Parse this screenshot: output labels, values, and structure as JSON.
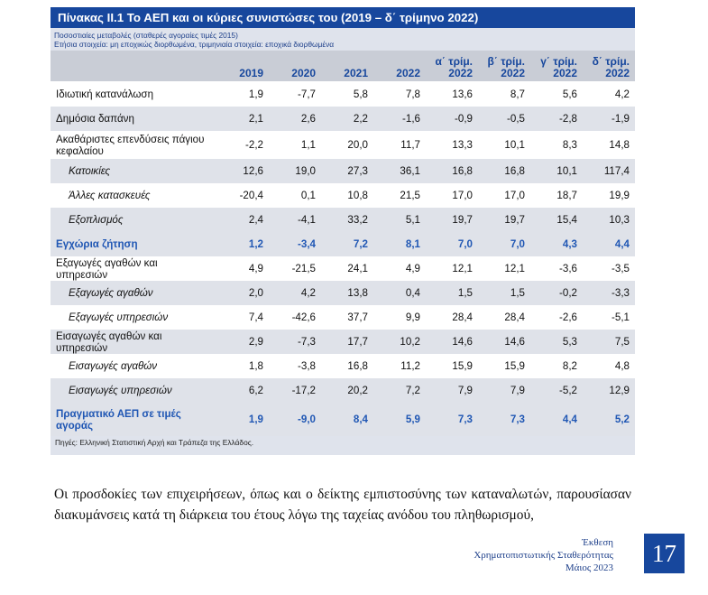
{
  "table": {
    "title": "Πίνακας ΙΙ.1 Το ΑΕΠ και οι κύριες συνιστώσες του (2019 – δ΄ τρίμηνο 2022)",
    "notes": [
      "Ποσοστιαίες μεταβολές (σταθερές αγοραίες τιμές 2015)",
      "Ετήσια στοιχεία: μη εποχικώς διορθωμένα, τριμηνιαία στοιχεία: εποχικά διορθωμένα"
    ],
    "columns": [
      "2019",
      "2020",
      "2021",
      "2022",
      "α΄ τρίμ. 2022",
      "β΄ τρίμ. 2022",
      "γ΄ τρίμ. 2022",
      "δ΄ τρίμ. 2022"
    ],
    "rows": [
      {
        "label": "Ιδιωτική κατανάλωση",
        "values": [
          "1,9",
          "-7,7",
          "5,8",
          "7,8",
          "13,6",
          "8,7",
          "5,6",
          "4,2"
        ]
      },
      {
        "label": "Δημόσια δαπάνη",
        "values": [
          "2,1",
          "2,6",
          "2,2",
          "-1,6",
          "-0,9",
          "-0,5",
          "-2,8",
          "-1,9"
        ]
      },
      {
        "label": "Ακαθάριστες επενδύσεις πάγιου κεφαλαίου",
        "values": [
          "-2,2",
          "1,1",
          "20,0",
          "11,7",
          "13,3",
          "10,1",
          "8,3",
          "14,8"
        ]
      },
      {
        "label": "Κατοικίες",
        "values": [
          "12,6",
          "19,0",
          "27,3",
          "36,1",
          "16,8",
          "16,8",
          "10,1",
          "117,4"
        ]
      },
      {
        "label": "Άλλες κατασκευές",
        "values": [
          "-20,4",
          "0,1",
          "10,8",
          "21,5",
          "17,0",
          "17,0",
          "18,7",
          "19,9"
        ]
      },
      {
        "label": "Εξοπλισμός",
        "values": [
          "2,4",
          "-4,1",
          "33,2",
          "5,1",
          "19,7",
          "19,7",
          "15,4",
          "10,3"
        ]
      },
      {
        "label": "Εγχώρια ζήτηση",
        "values": [
          "1,2",
          "-3,4",
          "7,2",
          "8,1",
          "7,0",
          "7,0",
          "4,3",
          "4,4"
        ]
      },
      {
        "label": "Εξαγωγές αγαθών και υπηρεσιών",
        "values": [
          "4,9",
          "-21,5",
          "24,1",
          "4,9",
          "12,1",
          "12,1",
          "-3,6",
          "-3,5"
        ]
      },
      {
        "label": "Εξαγωγές αγαθών",
        "values": [
          "2,0",
          "4,2",
          "13,8",
          "0,4",
          "1,5",
          "1,5",
          "-0,2",
          "-3,3"
        ]
      },
      {
        "label": "Εξαγωγές υπηρεσιών",
        "values": [
          "7,4",
          "-42,6",
          "37,7",
          "9,9",
          "28,4",
          "28,4",
          "-2,6",
          "-5,1"
        ]
      },
      {
        "label": "Εισαγωγές αγαθών και υπηρεσιών",
        "values": [
          "2,9",
          "-7,3",
          "17,7",
          "10,2",
          "14,6",
          "14,6",
          "5,3",
          "7,5"
        ]
      },
      {
        "label": "Εισαγωγές αγαθών",
        "values": [
          "1,8",
          "-3,8",
          "16,8",
          "11,2",
          "15,9",
          "15,9",
          "8,2",
          "4,8"
        ]
      },
      {
        "label": "Εισαγωγές υπηρεσιών",
        "values": [
          "6,2",
          "-17,2",
          "20,2",
          "7,2",
          "7,9",
          "7,9",
          "-5,2",
          "12,9"
        ]
      },
      {
        "label": "Πραγματικό ΑΕΠ σε τιμές αγοράς",
        "values": [
          "1,9",
          "-9,0",
          "8,4",
          "5,9",
          "7,3",
          "7,3",
          "4,4",
          "5,2"
        ]
      }
    ],
    "source": "Πηγές: Ελληνική Στατιστική Αρχή και Τράπεζα της Ελλάδος."
  },
  "paragraph": "Οι προσδοκίες των επιχειρήσεων, όπως και ο δείκτης εμπιστοσύνης των καταναλωτών, παρουσίασαν διακυμάνσεις κατά τη διάρκεια του έτους λόγω της ταχείας ανόδου του πληθωρισμού,",
  "footer": {
    "line1": "Έκθεση",
    "line2": "Χρηματοπιστωτικής Σταθερότητας",
    "line3": "Μάιος 2023"
  },
  "page_number": "17",
  "colors": {
    "title_bar": "#17479d",
    "header_fill": "#c9cdd6",
    "row_shade": "#dfe2e9",
    "bold_text": "#2057b4"
  }
}
